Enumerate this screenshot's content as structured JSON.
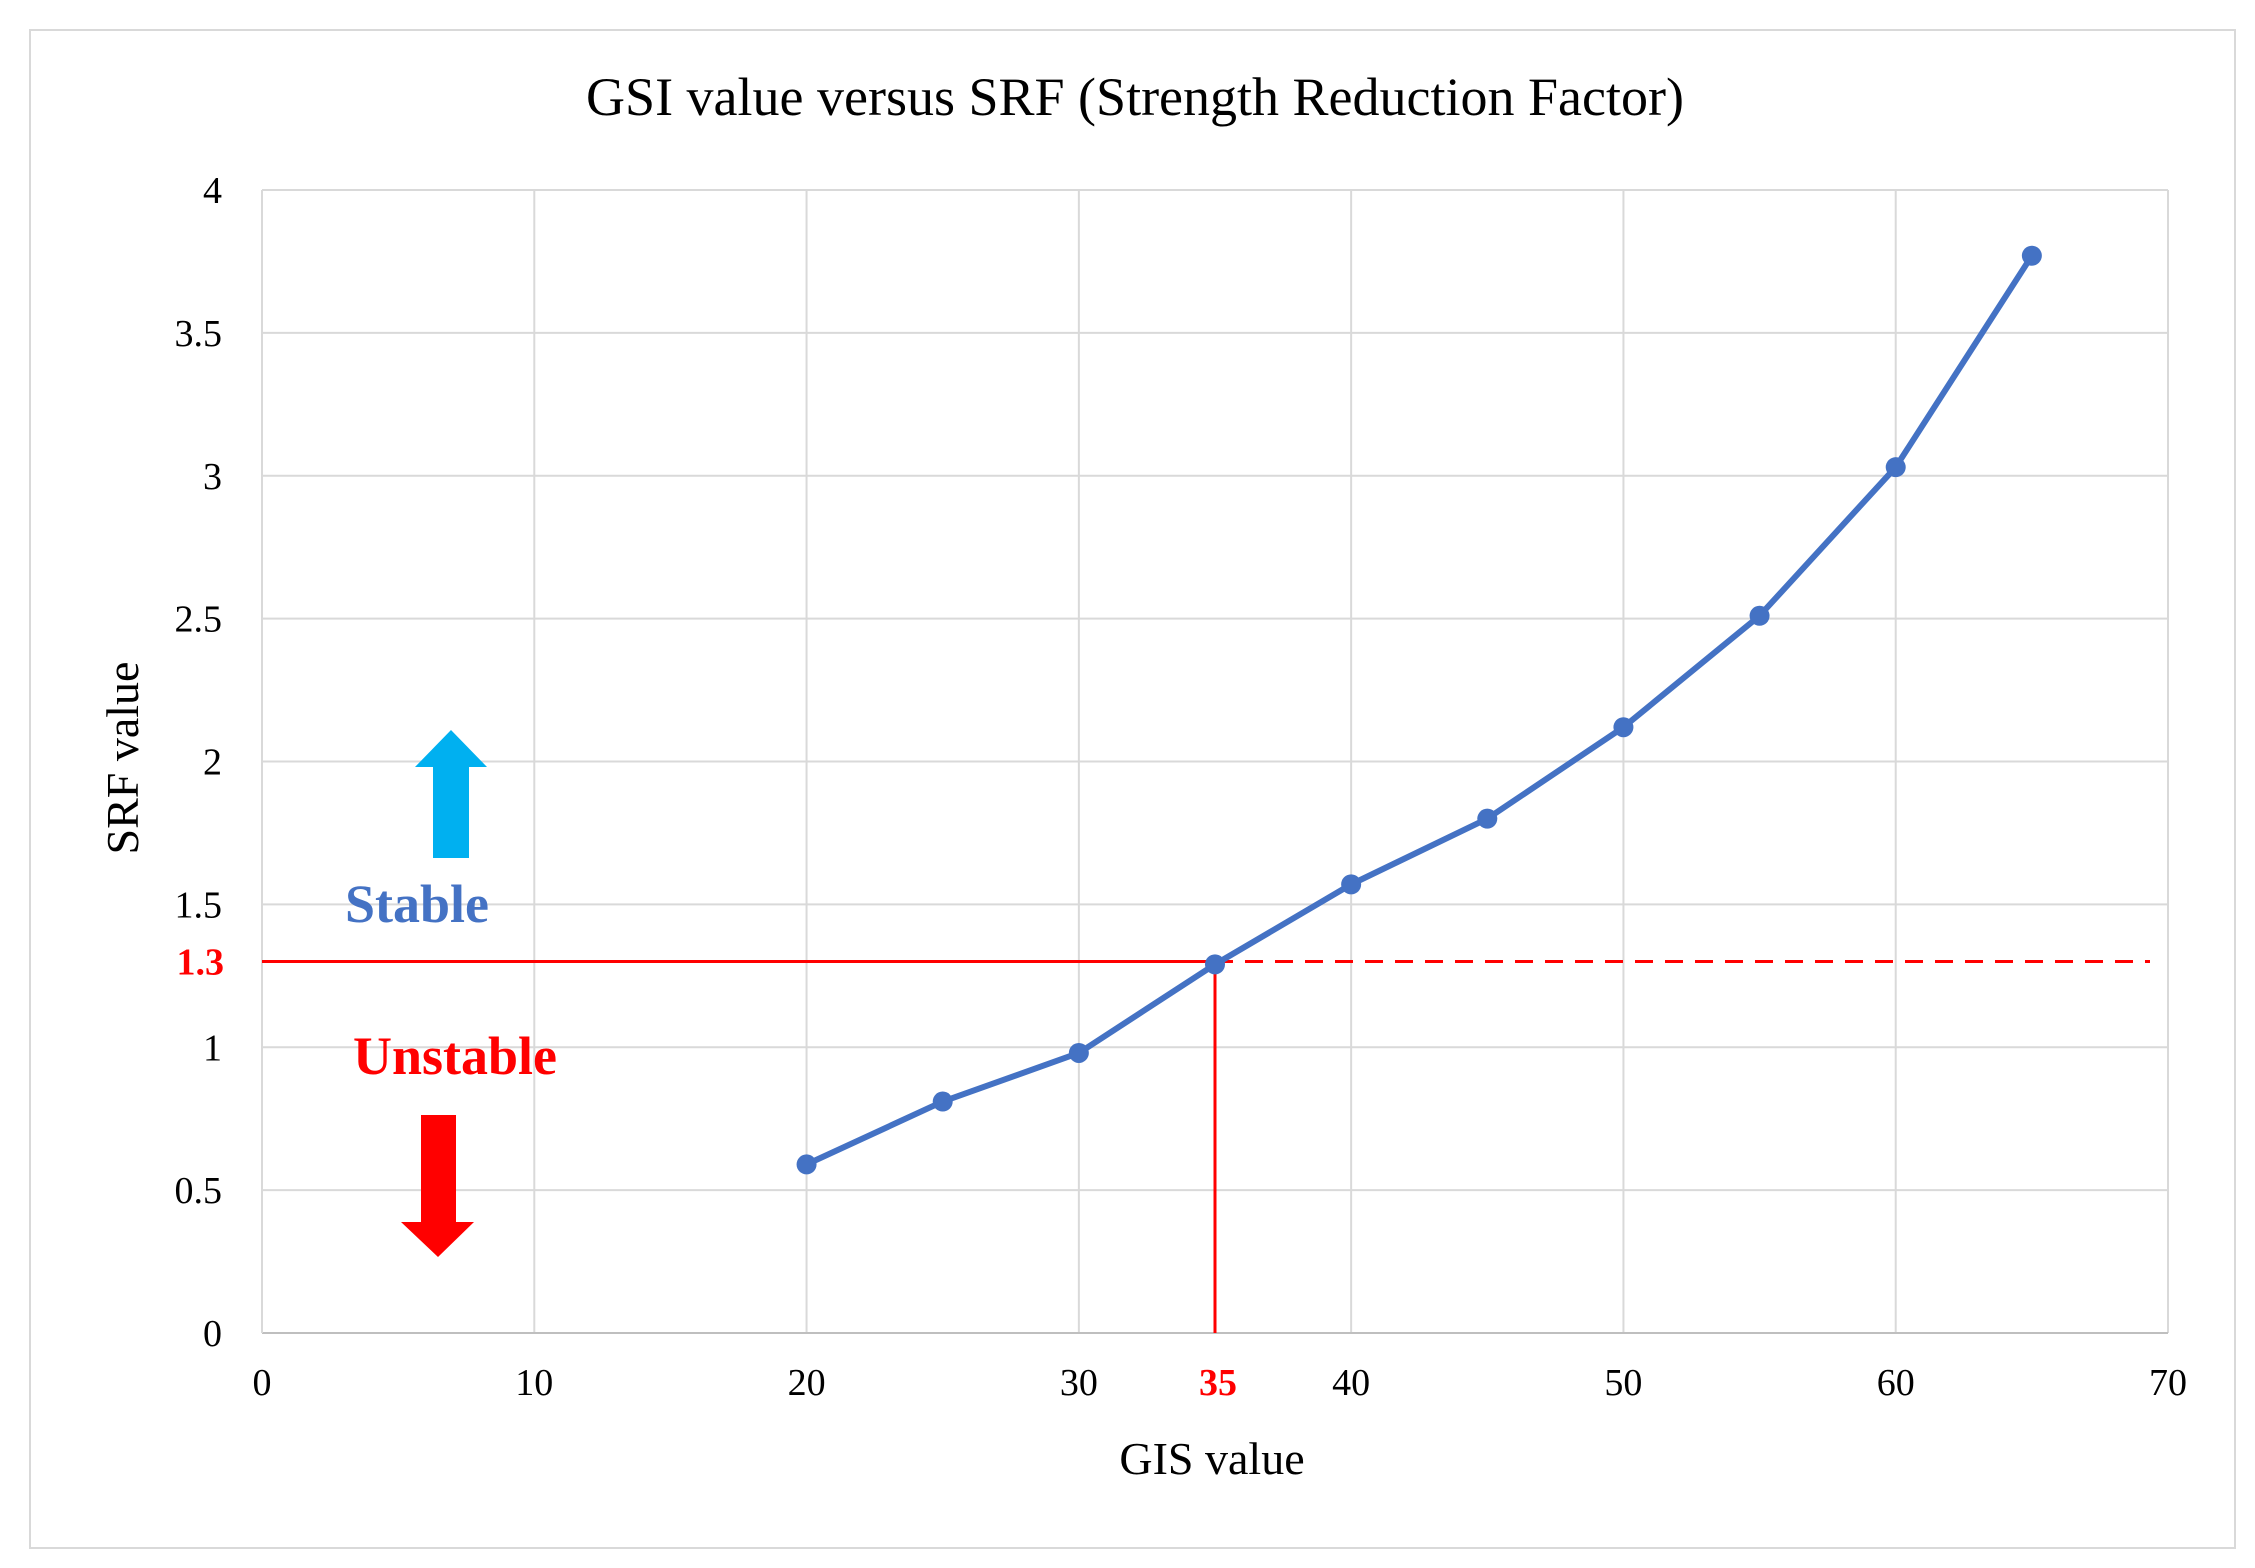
{
  "chart_data": {
    "type": "line",
    "title": "GSI value versus SRF (Strength Reduction Factor)",
    "xlabel": "GIS value",
    "ylabel": "SRF value",
    "xlim": [
      0,
      70
    ],
    "ylim": [
      0,
      4
    ],
    "x_ticks": [
      0,
      10,
      20,
      30,
      40,
      50,
      60,
      70
    ],
    "y_ticks": [
      0,
      0.5,
      1,
      1.5,
      2,
      2.5,
      3,
      3.5,
      4
    ],
    "x_tick_labels": [
      "0",
      "10",
      "20",
      "30",
      "40",
      "50",
      "60",
      "70"
    ],
    "y_tick_labels": [
      "0",
      "0.5",
      "1",
      "1.5",
      "2",
      "2.5",
      "3",
      "3.5",
      "4"
    ],
    "grid": true,
    "series": [
      {
        "name": "SRF",
        "color": "#4472c4",
        "x": [
          20,
          25,
          30,
          35,
          40,
          45,
          50,
          55,
          60,
          65
        ],
        "y": [
          0.59,
          0.81,
          0.98,
          1.29,
          1.57,
          1.8,
          2.12,
          2.51,
          3.03,
          3.77
        ]
      }
    ],
    "threshold": {
      "srf": 1.3,
      "srf_label": "1.3",
      "gis": 35,
      "gis_label": "35",
      "color": "#ff0000"
    },
    "annotations": {
      "stable": {
        "text": "Stable",
        "color": "#4472c4",
        "arrow_color": "#00b0f0"
      },
      "unstable": {
        "text": "Unstable",
        "color": "#ff0000",
        "arrow_color": "#ff0000"
      }
    }
  }
}
